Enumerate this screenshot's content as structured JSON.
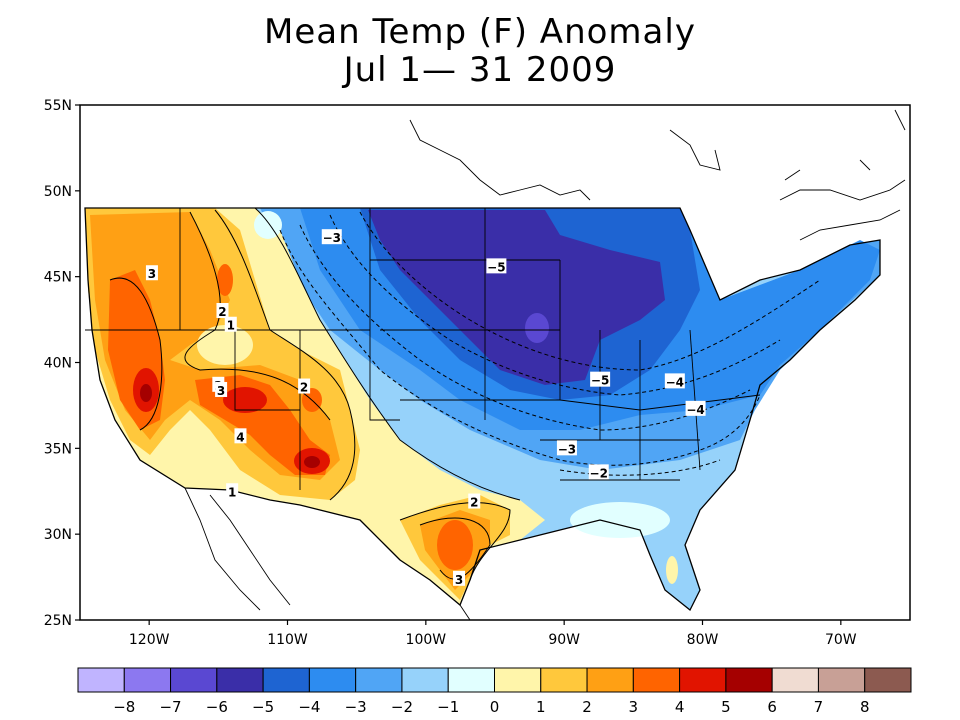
{
  "title": "Mean Temp (F) Anomaly",
  "subtitle": "Jul 1— 31 2009",
  "lat_labels": [
    "55N",
    "50N",
    "45N",
    "40N",
    "35N",
    "30N",
    "25N"
  ],
  "lon_labels": [
    "120W",
    "110W",
    "100W",
    "90W",
    "80W",
    "70W"
  ],
  "colorbar": {
    "labels": [
      "-8",
      "-7",
      "-6",
      "-5",
      "-4",
      "-3",
      "-2",
      "-1",
      "0",
      "1",
      "2",
      "3",
      "4",
      "5",
      "6",
      "7",
      "8"
    ],
    "colors": [
      "#c0b4ff",
      "#8c78f0",
      "#5a48d2",
      "#3a2ea8",
      "#1e64d2",
      "#2d8cf0",
      "#50a5f5",
      "#96d2fa",
      "#e1ffff",
      "#fff5aa",
      "#ffc83c",
      "#ffa014",
      "#ff6400",
      "#e11400",
      "#a50000",
      "#f0dcd2",
      "#c8a096",
      "#8c5a50"
    ]
  },
  "contour_labels": [
    {
      "text": "3",
      "lon": -119.8,
      "lat": 45.2
    },
    {
      "text": "2",
      "lon": -114.7,
      "lat": 43.0
    },
    {
      "text": "1",
      "lon": -114.1,
      "lat": 42.2
    },
    {
      "text": "2",
      "lon": -115.0,
      "lat": 38.7
    },
    {
      "text": "3",
      "lon": -114.8,
      "lat": 38.4
    },
    {
      "text": "2",
      "lon": -108.8,
      "lat": 38.6
    },
    {
      "text": "4",
      "lon": -113.4,
      "lat": 35.7
    },
    {
      "text": "1",
      "lon": -114.0,
      "lat": 32.5
    },
    {
      "text": "-3",
      "lon": -106.8,
      "lat": 47.3
    },
    {
      "text": "-5",
      "lon": -94.9,
      "lat": 45.6
    },
    {
      "text": "-5",
      "lon": -87.4,
      "lat": 39.0
    },
    {
      "text": "-4",
      "lon": -82.0,
      "lat": 38.9
    },
    {
      "text": "-4",
      "lon": -80.5,
      "lat": 37.3
    },
    {
      "text": "-3",
      "lon": -89.8,
      "lat": 35.0
    },
    {
      "text": "-2",
      "lon": -87.5,
      "lat": 33.6
    },
    {
      "text": "2",
      "lon": -96.5,
      "lat": 31.9
    },
    {
      "text": "3",
      "lon": -97.6,
      "lat": 27.4
    }
  ]
}
